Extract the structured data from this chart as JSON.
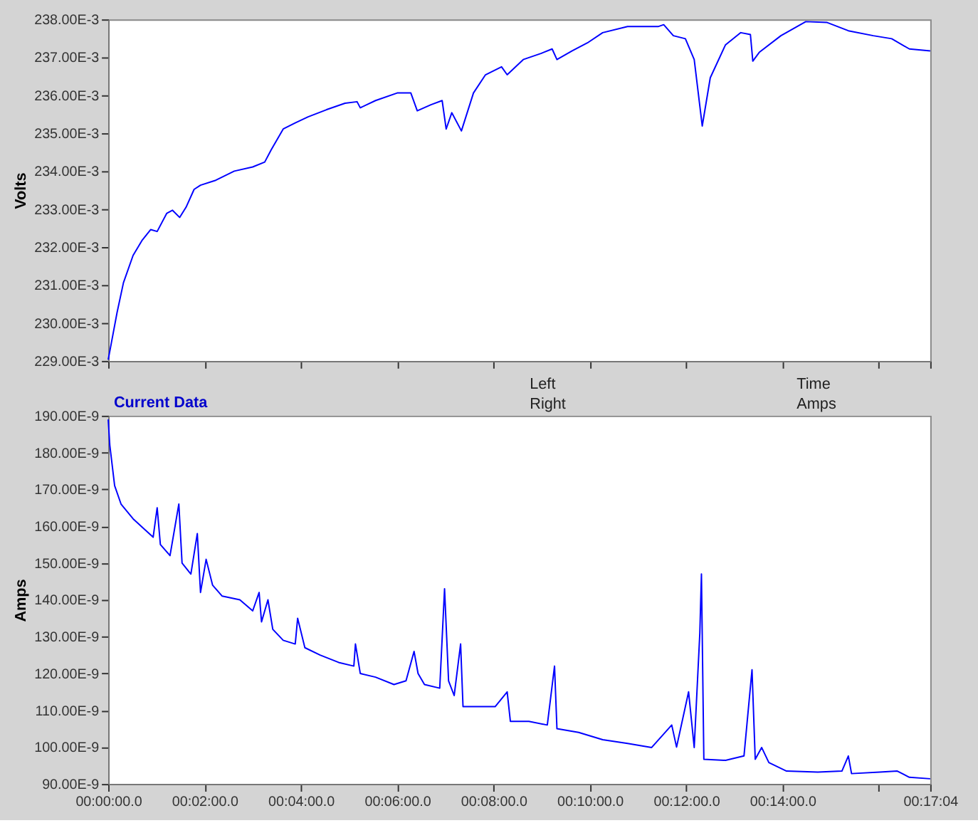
{
  "chart_data": [
    {
      "type": "line",
      "ylabel": "Volts",
      "tick_labels": "y",
      "grid": false,
      "xlim": [
        "2000-01-01T00:00:00",
        "2000-01-01T00:17:04"
      ],
      "xticks": [
        {
          "value": "2000-01-01T00:00:00",
          "label": null
        },
        {
          "value": "2000-01-01T00:02:00",
          "label": null
        },
        {
          "value": "2000-01-01T00:04:00",
          "label": null
        },
        {
          "value": "2000-01-01T00:06:00",
          "label": null
        },
        {
          "value": "2000-01-01T00:08:00",
          "label": null
        },
        {
          "value": "2000-01-01T00:10:00",
          "label": null
        },
        {
          "value": "2000-01-01T00:12:00",
          "label": null
        },
        {
          "value": "2000-01-01T00:14:00",
          "label": null
        },
        {
          "value": "2000-01-01T00:16:00",
          "label": null
        },
        {
          "value": "2000-01-01T00:17:04",
          "label": null
        }
      ],
      "ylim": [
        0.229,
        0.238
      ],
      "yticks": [
        {
          "value": 0.229,
          "label": "229.00E-3"
        },
        {
          "value": 0.23,
          "label": "230.00E-3"
        },
        {
          "value": 0.231,
          "label": "231.00E-3"
        },
        {
          "value": 0.232,
          "label": "232.00E-3"
        },
        {
          "value": 0.233,
          "label": "233.00E-3"
        },
        {
          "value": 0.234,
          "label": "234.00E-3"
        },
        {
          "value": 0.235,
          "label": "235.00E-3"
        },
        {
          "value": 0.236,
          "label": "236.00E-3"
        },
        {
          "value": 0.237,
          "label": "237.00E-3"
        },
        {
          "value": 0.238,
          "label": "238.00E-3"
        }
      ],
      "series": [
        {
          "color": "#0000ff",
          "x": [
            "2000-01-01T00:00:00",
            "2000-01-01T00:00:04",
            "2000-01-01T00:00:11",
            "2000-01-01T00:00:19",
            "2000-01-01T00:00:31",
            "2000-01-01T00:00:42",
            "2000-01-01T00:00:53",
            "2000-01-01T00:01:01",
            "2000-01-01T00:01:13",
            "2000-01-01T00:01:20",
            "2000-01-01T00:01:29",
            "2000-01-01T00:01:37",
            "2000-01-01T00:01:47",
            "2000-01-01T00:01:55",
            "2000-01-01T00:02:14",
            "2000-01-01T00:02:37",
            "2000-01-01T00:03:00",
            "2000-01-01T00:03:15",
            "2000-01-01T00:03:23",
            "2000-01-01T00:03:38",
            "2000-01-01T00:03:53",
            "2000-01-01T00:04:09",
            "2000-01-01T00:04:32",
            "2000-01-01T00:04:55",
            "2000-01-01T00:05:10",
            "2000-01-01T00:05:14",
            "2000-01-01T00:05:33",
            "2000-01-01T00:06:00",
            "2000-01-01T00:06:17",
            "2000-01-01T00:06:25",
            "2000-01-01T00:06:42",
            "2000-01-01T00:06:56",
            "2000-01-01T00:07:01",
            "2000-01-01T00:07:08",
            "2000-01-01T00:07:20",
            "2000-01-01T00:07:35",
            "2000-01-01T00:07:50",
            "2000-01-01T00:08:10",
            "2000-01-01T00:08:17",
            "2000-01-01T00:08:37",
            "2000-01-01T00:08:59",
            "2000-01-01T00:09:13",
            "2000-01-01T00:09:19",
            "2000-01-01T00:09:38",
            "2000-01-01T00:09:57",
            "2000-01-01T00:10:16",
            "2000-01-01T00:10:47",
            "2000-01-01T00:11:25",
            "2000-01-01T00:11:32",
            "2000-01-01T00:11:44",
            "2000-01-01T00:11:59",
            "2000-01-01T00:12:10",
            "2000-01-01T00:12:20",
            "2000-01-01T00:12:30",
            "2000-01-01T00:12:49",
            "2000-01-01T00:13:08",
            "2000-01-01T00:13:20",
            "2000-01-01T00:13:23",
            "2000-01-01T00:13:31",
            "2000-01-01T00:13:58",
            "2000-01-01T00:14:29",
            "2000-01-01T00:14:55",
            "2000-01-01T00:15:22",
            "2000-01-01T00:15:53",
            "2000-01-01T00:16:16",
            "2000-01-01T00:16:38",
            "2000-01-01T00:17:04"
          ],
          "values": [
            0.22903,
            0.22948,
            0.23027,
            0.23106,
            0.23178,
            0.23217,
            0.23246,
            0.23241,
            0.23289,
            0.23297,
            0.23278,
            0.23305,
            0.23352,
            0.23363,
            0.23376,
            0.234,
            0.23411,
            0.23424,
            0.23456,
            0.23511,
            0.23527,
            0.23543,
            0.23562,
            0.23579,
            0.23583,
            0.23567,
            0.23586,
            0.23606,
            0.23606,
            0.23559,
            0.23575,
            0.23586,
            0.23511,
            0.23554,
            0.23506,
            0.23606,
            0.23654,
            0.23675,
            0.23654,
            0.23694,
            0.2371,
            0.23722,
            0.23694,
            0.23717,
            0.23738,
            0.23765,
            0.23781,
            0.23781,
            0.23786,
            0.23757,
            0.23749,
            0.23694,
            0.23519,
            0.23646,
            0.23733,
            0.23765,
            0.2376,
            0.2369,
            0.23713,
            0.23757,
            0.23794,
            0.23792,
            0.2377,
            0.23757,
            0.23749,
            0.23722,
            0.23717
          ]
        }
      ]
    },
    {
      "type": "line",
      "title": "Current Data",
      "ylabel": "Amps",
      "grid": false,
      "annotations": [
        "Left",
        "Right",
        "Time",
        "Amps"
      ],
      "xlim": [
        "2000-01-01T00:00:00",
        "2000-01-01T00:17:04"
      ],
      "xticks": [
        {
          "value": "2000-01-01T00:00:00",
          "label": "00:00:00.0"
        },
        {
          "value": "2000-01-01T00:02:00",
          "label": "00:02:00.0"
        },
        {
          "value": "2000-01-01T00:04:00",
          "label": "00:04:00.0"
        },
        {
          "value": "2000-01-01T00:06:00",
          "label": "00:06:00.0"
        },
        {
          "value": "2000-01-01T00:08:00",
          "label": "00:08:00.0"
        },
        {
          "value": "2000-01-01T00:10:00",
          "label": "00:10:00.0"
        },
        {
          "value": "2000-01-01T00:12:00",
          "label": "00:12:00.0"
        },
        {
          "value": "2000-01-01T00:14:00",
          "label": "00:14:00.0"
        },
        {
          "value": "2000-01-01T00:16:00",
          "label": null
        },
        {
          "value": "2000-01-01T00:17:04",
          "label": "00:17:04"
        }
      ],
      "ylim": [
        9e-08,
        1.9e-07
      ],
      "yticks": [
        {
          "value": 9e-08,
          "label": "90.00E-9"
        },
        {
          "value": 1e-07,
          "label": "100.00E-9"
        },
        {
          "value": 1.1e-07,
          "label": "110.00E-9"
        },
        {
          "value": 1.2e-07,
          "label": "120.00E-9"
        },
        {
          "value": 1.3e-07,
          "label": "130.00E-9"
        },
        {
          "value": 1.4e-07,
          "label": "140.00E-9"
        },
        {
          "value": 1.5e-07,
          "label": "150.00E-9"
        },
        {
          "value": 1.6e-07,
          "label": "160.00E-9"
        },
        {
          "value": 1.7e-07,
          "label": "170.00E-9"
        },
        {
          "value": 1.8e-07,
          "label": "180.00E-9"
        },
        {
          "value": 1.9e-07,
          "label": "190.00E-9"
        }
      ],
      "series": [
        {
          "color": "#0000ff",
          "x": [
            "2000-01-01T00:00:00",
            "2000-01-01T00:00:02",
            "2000-01-01T00:00:08",
            "2000-01-01T00:00:16",
            "2000-01-01T00:00:31",
            "2000-01-01T00:00:46",
            "2000-01-01T00:00:56",
            "2000-01-01T00:01:01",
            "2000-01-01T00:01:05",
            "2000-01-01T00:01:17",
            "2000-01-01T00:01:28",
            "2000-01-01T00:01:32",
            "2000-01-01T00:01:43",
            "2000-01-01T00:01:51",
            "2000-01-01T00:01:55",
            "2000-01-01T00:02:02",
            "2000-01-01T00:02:10",
            "2000-01-01T00:02:22",
            "2000-01-01T00:02:44",
            "2000-01-01T00:03:00",
            "2000-01-01T00:03:08",
            "2000-01-01T00:03:11",
            "2000-01-01T00:03:19",
            "2000-01-01T00:03:25",
            "2000-01-01T00:03:38",
            "2000-01-01T00:03:53",
            "2000-01-01T00:03:56",
            "2000-01-01T00:04:05",
            "2000-01-01T00:04:24",
            "2000-01-01T00:04:47",
            "2000-01-01T00:05:06",
            "2000-01-01T00:05:08",
            "2000-01-01T00:05:14",
            "2000-01-01T00:05:33",
            "2000-01-01T00:05:56",
            "2000-01-01T00:06:11",
            "2000-01-01T00:06:21",
            "2000-01-01T00:06:26",
            "2000-01-01T00:06:34",
            "2000-01-01T00:06:53",
            "2000-01-01T00:06:59",
            "2000-01-01T00:07:04",
            "2000-01-01T00:07:11",
            "2000-01-01T00:07:19",
            "2000-01-01T00:07:22",
            "2000-01-01T00:07:43",
            "2000-01-01T00:08:02",
            "2000-01-01T00:08:17",
            "2000-01-01T00:08:21",
            "2000-01-01T00:08:44",
            "2000-01-01T00:09:07",
            "2000-01-01T00:09:16",
            "2000-01-01T00:09:19",
            "2000-01-01T00:09:46",
            "2000-01-01T00:10:16",
            "2000-01-01T00:10:47",
            "2000-01-01T00:11:17",
            "2000-01-01T00:11:42",
            "2000-01-01T00:11:48",
            "2000-01-01T00:12:03",
            "2000-01-01T00:12:10",
            "2000-01-01T00:12:17",
            "2000-01-01T00:12:19",
            "2000-01-01T00:12:22",
            "2000-01-01T00:12:49",
            "2000-01-01T00:13:12",
            "2000-01-01T00:13:22",
            "2000-01-01T00:13:26",
            "2000-01-01T00:13:34",
            "2000-01-01T00:13:43",
            "2000-01-01T00:14:05",
            "2000-01-01T00:14:44",
            "2000-01-01T00:15:14",
            "2000-01-01T00:15:22",
            "2000-01-01T00:15:26",
            "2000-01-01T00:16:01",
            "2000-01-01T00:16:23",
            "2000-01-01T00:16:38",
            "2000-01-01T00:17:04"
          ],
          "values": [
            1.89e-07,
            1.82e-07,
            1.71e-07,
            1.66e-07,
            1.62e-07,
            1.59e-07,
            1.57e-07,
            1.65e-07,
            1.55e-07,
            1.52e-07,
            1.66e-07,
            1.5e-07,
            1.47e-07,
            1.58e-07,
            1.42e-07,
            1.51e-07,
            1.44e-07,
            1.41e-07,
            1.4e-07,
            1.37e-07,
            1.42e-07,
            1.34e-07,
            1.4e-07,
            1.32e-07,
            1.29e-07,
            1.28e-07,
            1.35e-07,
            1.27e-07,
            1.25e-07,
            1.23e-07,
            1.22e-07,
            1.28e-07,
            1.2e-07,
            1.19e-07,
            1.17e-07,
            1.18e-07,
            1.26e-07,
            1.2e-07,
            1.17e-07,
            1.16e-07,
            1.43e-07,
            1.18e-07,
            1.14e-07,
            1.28e-07,
            1.11e-07,
            1.11e-07,
            1.11e-07,
            1.15e-07,
            1.07e-07,
            1.07e-07,
            1.06e-07,
            1.22e-07,
            1.05e-07,
            1.04e-07,
            1.02e-07,
            1.01e-07,
            9.99e-08,
            1.06e-07,
            1e-07,
            1.15e-07,
            9.99e-08,
            1.31e-07,
            1.47e-07,
            9.67e-08,
            9.64e-08,
            9.76e-08,
            1.21e-07,
            9.67e-08,
            9.99e-08,
            9.58e-08,
            9.35e-08,
            9.32e-08,
            9.35e-08,
            9.76e-08,
            9.28e-08,
            9.32e-08,
            9.35e-08,
            9.18e-08,
            9.14e-08
          ]
        }
      ]
    }
  ]
}
